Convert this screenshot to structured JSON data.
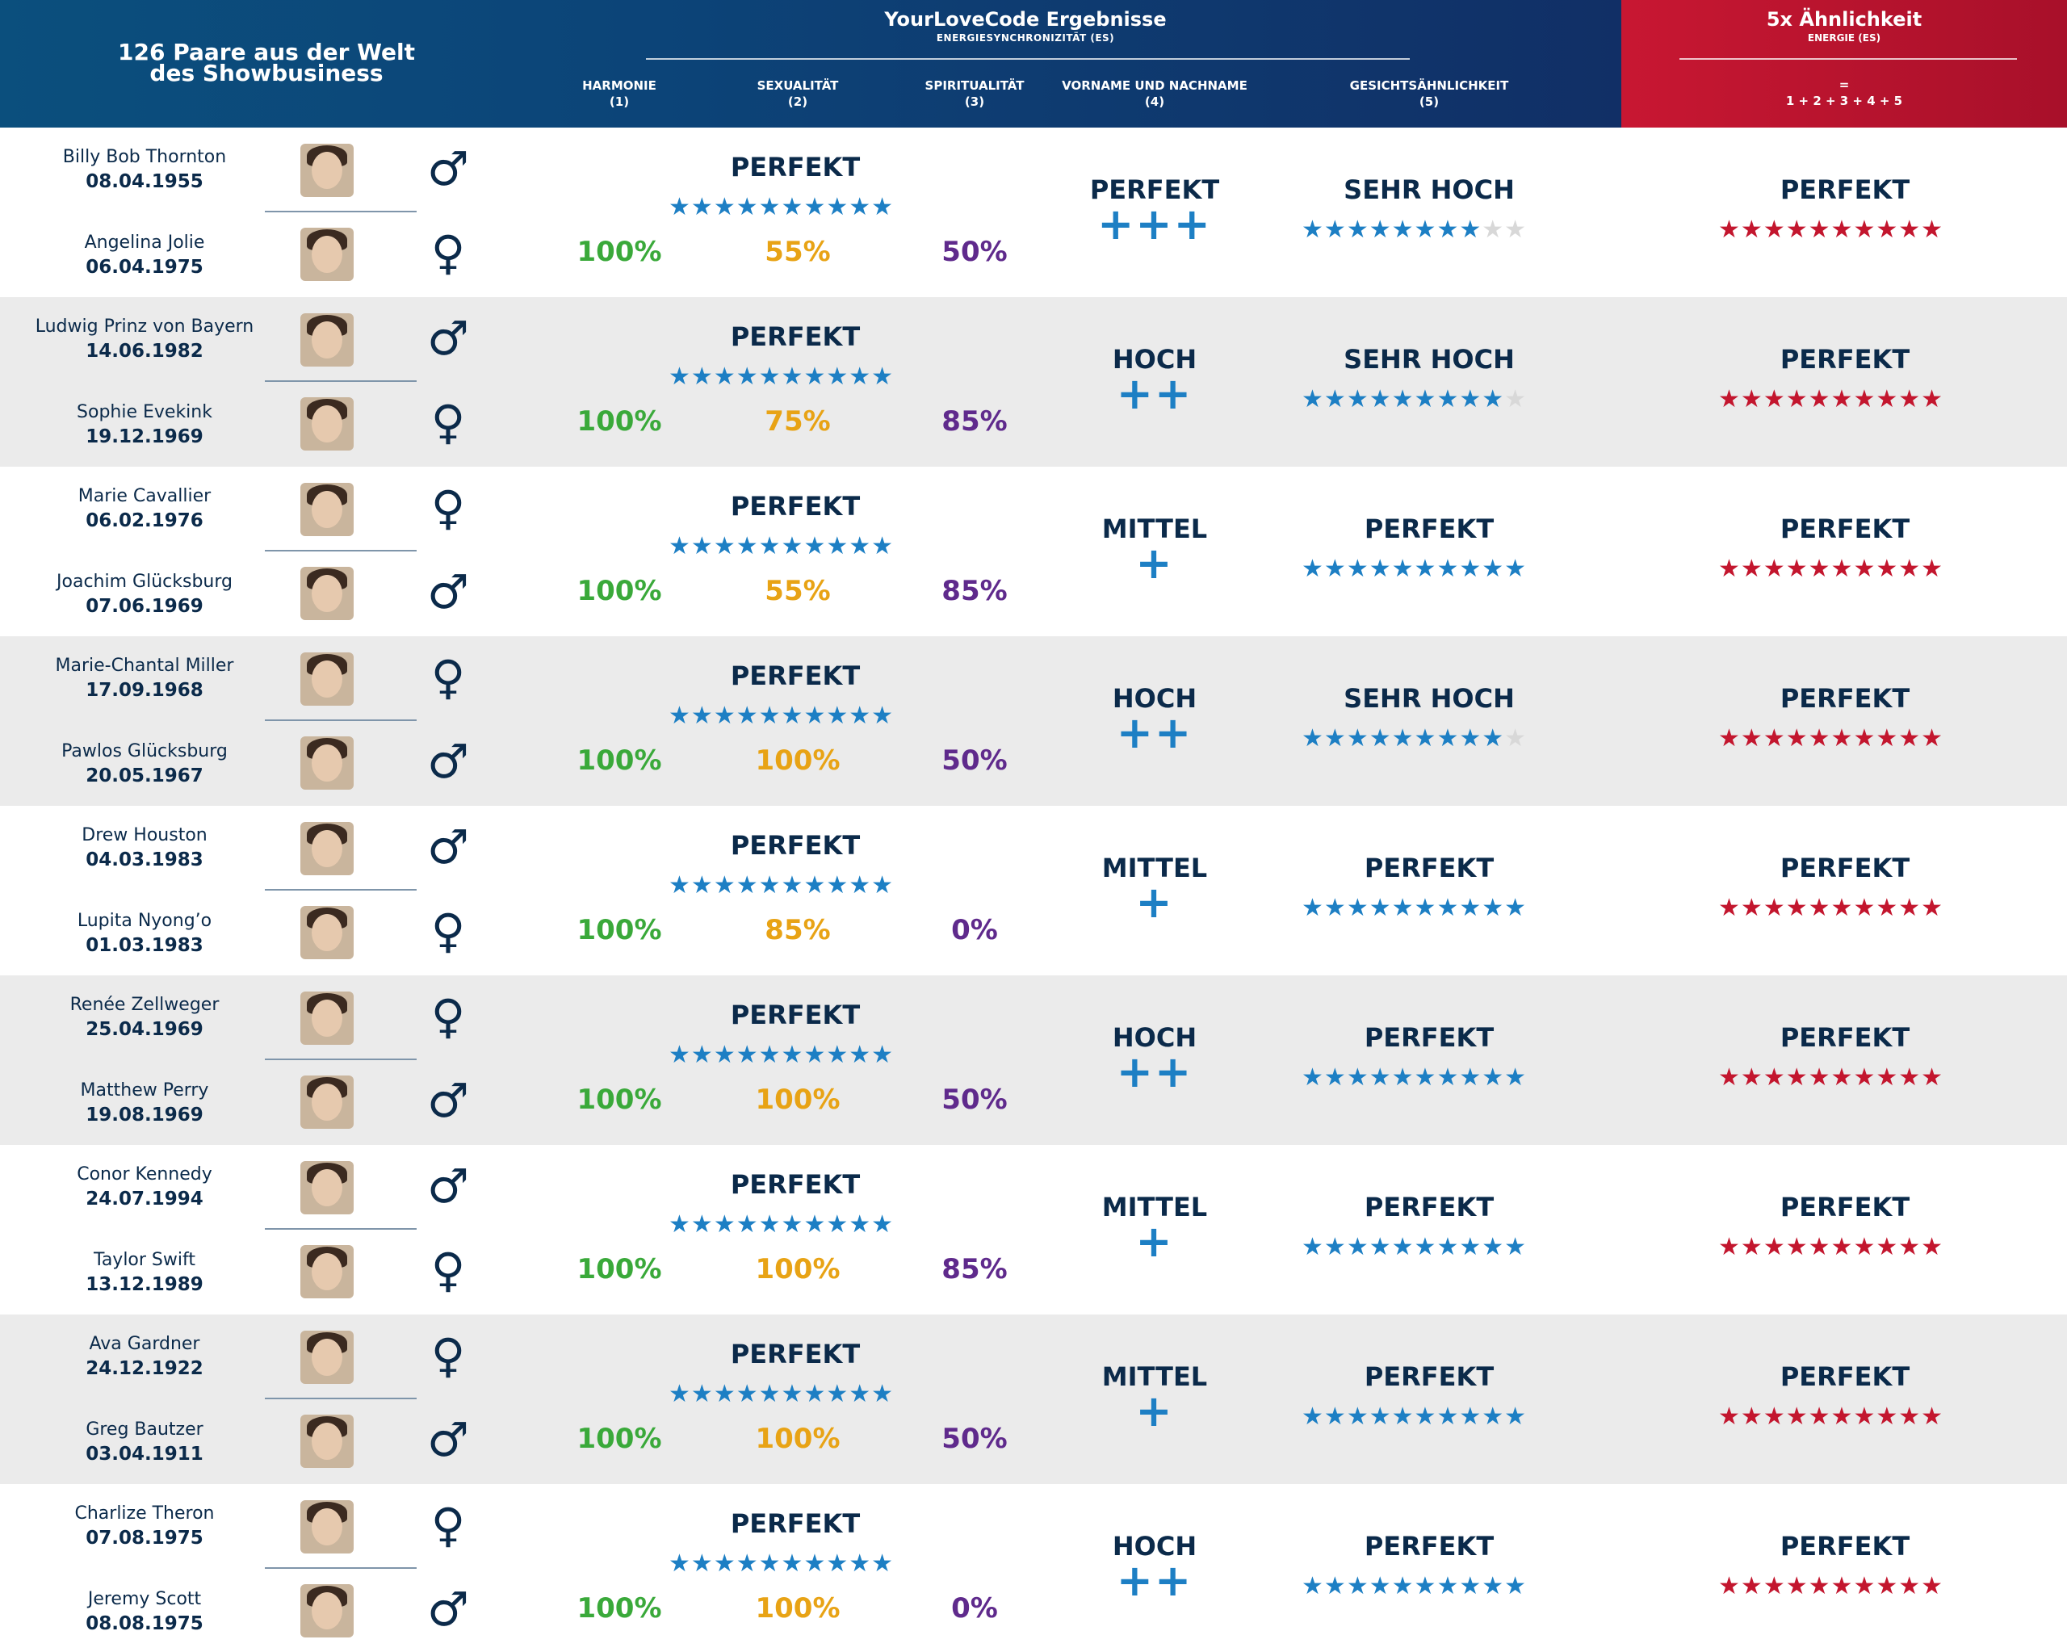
{
  "header": {
    "left_title_line1": "126 Paare aus der Welt",
    "left_title_line2": "des Showbusiness",
    "main_title": "YourLoveCode Ergebnisse",
    "main_subtitle": "ENERGIESYNCHRONIZITÄT (ES)",
    "columns": [
      {
        "label": "HARMONIE",
        "num": "(1)"
      },
      {
        "label": "SEXUALITÄT",
        "num": "(2)"
      },
      {
        "label": "SPIRITUALITÄT",
        "num": "(3)"
      },
      {
        "label": "VORNAME UND NACHNAME",
        "num": "(4)"
      },
      {
        "label": "GESICHTSÄHNLICHKEIT",
        "num": "(5)"
      }
    ],
    "red_title": "5x Ähnlichkeit",
    "red_subtitle": "ENERGIE (ES)",
    "red_eq": "=",
    "red_formula": "1 + 2 + 3 + 4 + 5",
    "colors": {
      "blue_header": "#0c4478",
      "red_header": "#b0122c",
      "star_blue": "#1d7fc4",
      "star_red": "#c3162e",
      "green": "#3aa93a",
      "yellow": "#e8a315",
      "purple": "#5f2a8c"
    }
  },
  "rows": [
    {
      "p1": {
        "name": "Billy Bob Thornton",
        "date": "08.04.1955",
        "sym": "♂"
      },
      "p2": {
        "name": "Angelina Jolie",
        "date": "06.04.1975",
        "sym": "♀"
      },
      "es_label": "PERFEKT",
      "es_stars": 10,
      "harmonie": "100%",
      "sexualitaet": "55%",
      "spiritualitaet": "50%",
      "name_label": "PERFEKT",
      "name_plus": "+++",
      "face_label": "SEHR HOCH",
      "face_stars": 8,
      "energy_label": "PERFEKT",
      "energy_stars": 10
    },
    {
      "p1": {
        "name": "Ludwig Prinz von Bayern",
        "date": "14.06.1982",
        "sym": "♂"
      },
      "p2": {
        "name": "Sophie Evekink",
        "date": "19.12.1969",
        "sym": "♀"
      },
      "es_label": "PERFEKT",
      "es_stars": 10,
      "harmonie": "100%",
      "sexualitaet": "75%",
      "spiritualitaet": "85%",
      "name_label": "HOCH",
      "name_plus": "++",
      "face_label": "SEHR HOCH",
      "face_stars": 9,
      "energy_label": "PERFEKT",
      "energy_stars": 10
    },
    {
      "p1": {
        "name": "Marie Cavallier",
        "date": "06.02.1976",
        "sym": "♀"
      },
      "p2": {
        "name": "Joachim Glücksburg",
        "date": "07.06.1969",
        "sym": "♂"
      },
      "es_label": "PERFEKT",
      "es_stars": 10,
      "harmonie": "100%",
      "sexualitaet": "55%",
      "spiritualitaet": "85%",
      "name_label": "MITTEL",
      "name_plus": "+",
      "face_label": "PERFEKT",
      "face_stars": 10,
      "energy_label": "PERFEKT",
      "energy_stars": 10
    },
    {
      "p1": {
        "name": "Marie-Chantal Miller",
        "date": "17.09.1968",
        "sym": "♀"
      },
      "p2": {
        "name": "Pawlos Glücksburg",
        "date": "20.05.1967",
        "sym": "♂"
      },
      "es_label": "PERFEKT",
      "es_stars": 10,
      "harmonie": "100%",
      "sexualitaet": "100%",
      "spiritualitaet": "50%",
      "name_label": "HOCH",
      "name_plus": "++",
      "face_label": "SEHR HOCH",
      "face_stars": 9,
      "energy_label": "PERFEKT",
      "energy_stars": 10
    },
    {
      "p1": {
        "name": "Drew Houston",
        "date": "04.03.1983",
        "sym": "♂"
      },
      "p2": {
        "name": "Lupita Nyong’o",
        "date": "01.03.1983",
        "sym": "♀"
      },
      "es_label": "PERFEKT",
      "es_stars": 10,
      "harmonie": "100%",
      "sexualitaet": "85%",
      "spiritualitaet": "0%",
      "name_label": "MITTEL",
      "name_plus": "+",
      "face_label": "PERFEKT",
      "face_stars": 10,
      "energy_label": "PERFEKT",
      "energy_stars": 10
    },
    {
      "p1": {
        "name": "Renée Zellweger",
        "date": "25.04.1969",
        "sym": "♀"
      },
      "p2": {
        "name": "Matthew Perry",
        "date": "19.08.1969",
        "sym": "♂"
      },
      "es_label": "PERFEKT",
      "es_stars": 10,
      "harmonie": "100%",
      "sexualitaet": "100%",
      "spiritualitaet": "50%",
      "name_label": "HOCH",
      "name_plus": "++",
      "face_label": "PERFEKT",
      "face_stars": 10,
      "energy_label": "PERFEKT",
      "energy_stars": 10
    },
    {
      "p1": {
        "name": "Conor Kennedy",
        "date": "24.07.1994",
        "sym": "♂"
      },
      "p2": {
        "name": "Taylor Swift",
        "date": "13.12.1989",
        "sym": "♀"
      },
      "es_label": "PERFEKT",
      "es_stars": 10,
      "harmonie": "100%",
      "sexualitaet": "100%",
      "spiritualitaet": "85%",
      "name_label": "MITTEL",
      "name_plus": "+",
      "face_label": "PERFEKT",
      "face_stars": 10,
      "energy_label": "PERFEKT",
      "energy_stars": 10
    },
    {
      "p1": {
        "name": "Ava Gardner",
        "date": "24.12.1922",
        "sym": "♀"
      },
      "p2": {
        "name": "Greg Bautzer",
        "date": "03.04.1911",
        "sym": "♂"
      },
      "es_label": "PERFEKT",
      "es_stars": 10,
      "harmonie": "100%",
      "sexualitaet": "100%",
      "spiritualitaet": "50%",
      "name_label": "MITTEL",
      "name_plus": "+",
      "face_label": "PERFEKT",
      "face_stars": 10,
      "energy_label": "PERFEKT",
      "energy_stars": 10
    },
    {
      "p1": {
        "name": "Charlize Theron",
        "date": "07.08.1975",
        "sym": "♀"
      },
      "p2": {
        "name": "Jeremy Scott",
        "date": "08.08.1975",
        "sym": "♂"
      },
      "es_label": "PERFEKT",
      "es_stars": 10,
      "harmonie": "100%",
      "sexualitaet": "100%",
      "spiritualitaet": "0%",
      "name_label": "HOCH",
      "name_plus": "++",
      "face_label": "PERFEKT",
      "face_stars": 10,
      "energy_label": "PERFEKT",
      "energy_stars": 10
    }
  ]
}
